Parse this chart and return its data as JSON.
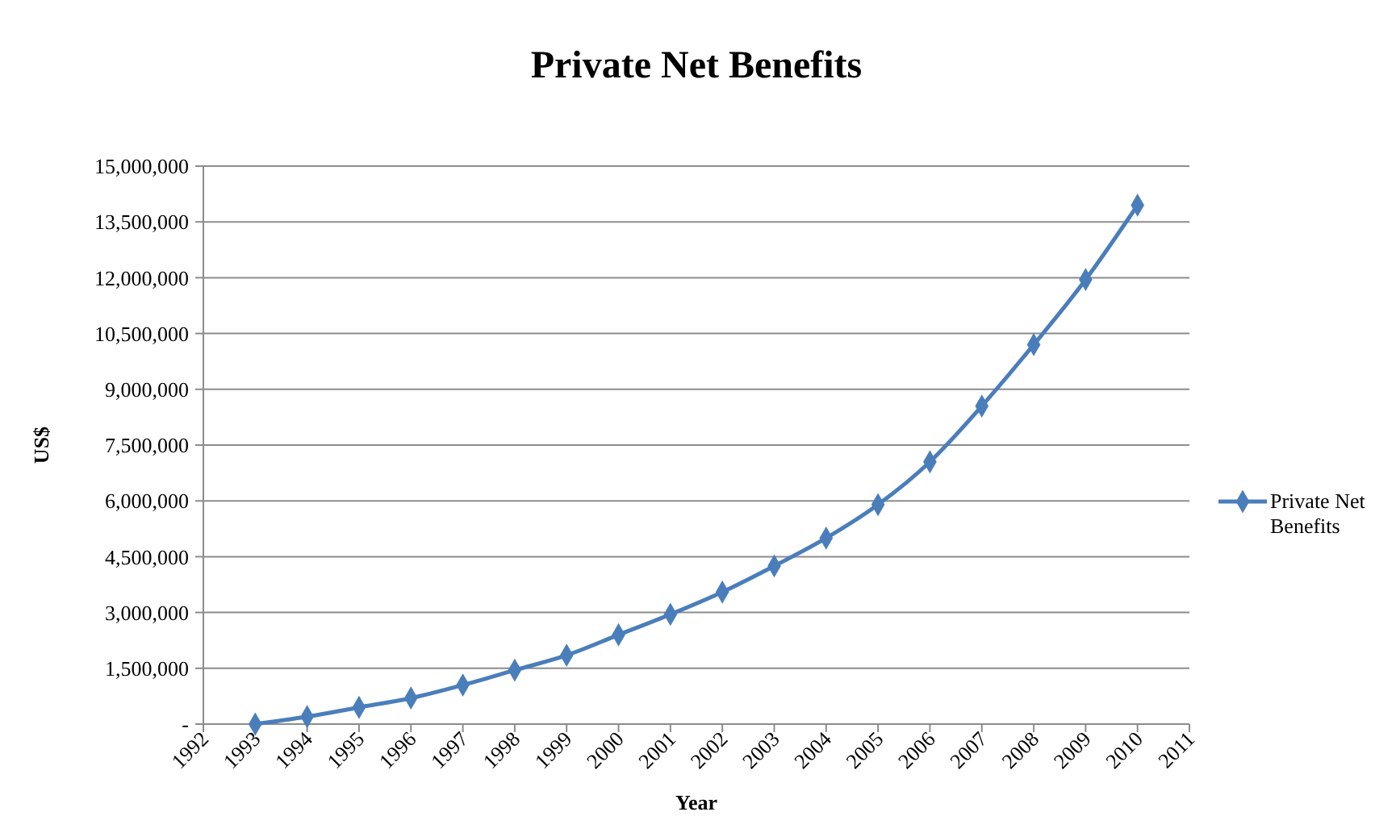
{
  "chart_data": {
    "type": "line",
    "title": "Private Net Benefits",
    "xlabel": "Year",
    "ylabel": "US$",
    "categories": [
      "1992",
      "1993",
      "1994",
      "1995",
      "1996",
      "1997",
      "1998",
      "1999",
      "2000",
      "2001",
      "2002",
      "2003",
      "2004",
      "2005",
      "2006",
      "2007",
      "2008",
      "2009",
      "2010",
      "2011"
    ],
    "series": [
      {
        "name": "Private Net Benefits",
        "color": "#4a7ebb",
        "values": [
          null,
          0,
          200000,
          450000,
          700000,
          1050000,
          1450000,
          1850000,
          2400000,
          2950000,
          3550000,
          4250000,
          5000000,
          5900000,
          7050000,
          8550000,
          10200000,
          11950000,
          13950000,
          null
        ]
      }
    ],
    "ylim": [
      0,
      15000000
    ],
    "yticks": [
      {
        "value": 0,
        "label": "-"
      },
      {
        "value": 1500000,
        "label": "1,500,000"
      },
      {
        "value": 3000000,
        "label": "3,000,000"
      },
      {
        "value": 4500000,
        "label": "4,500,000"
      },
      {
        "value": 6000000,
        "label": "6,000,000"
      },
      {
        "value": 7500000,
        "label": "7,500,000"
      },
      {
        "value": 9000000,
        "label": "9,000,000"
      },
      {
        "value": 10500000,
        "label": "10,500,000"
      },
      {
        "value": 12000000,
        "label": "12,000,000"
      },
      {
        "value": 13500000,
        "label": "13,500,000"
      },
      {
        "value": 15000000,
        "label": "15,000,000"
      }
    ],
    "grid": "y",
    "legend": "right",
    "marker": "diamond",
    "line_style": "solid"
  }
}
